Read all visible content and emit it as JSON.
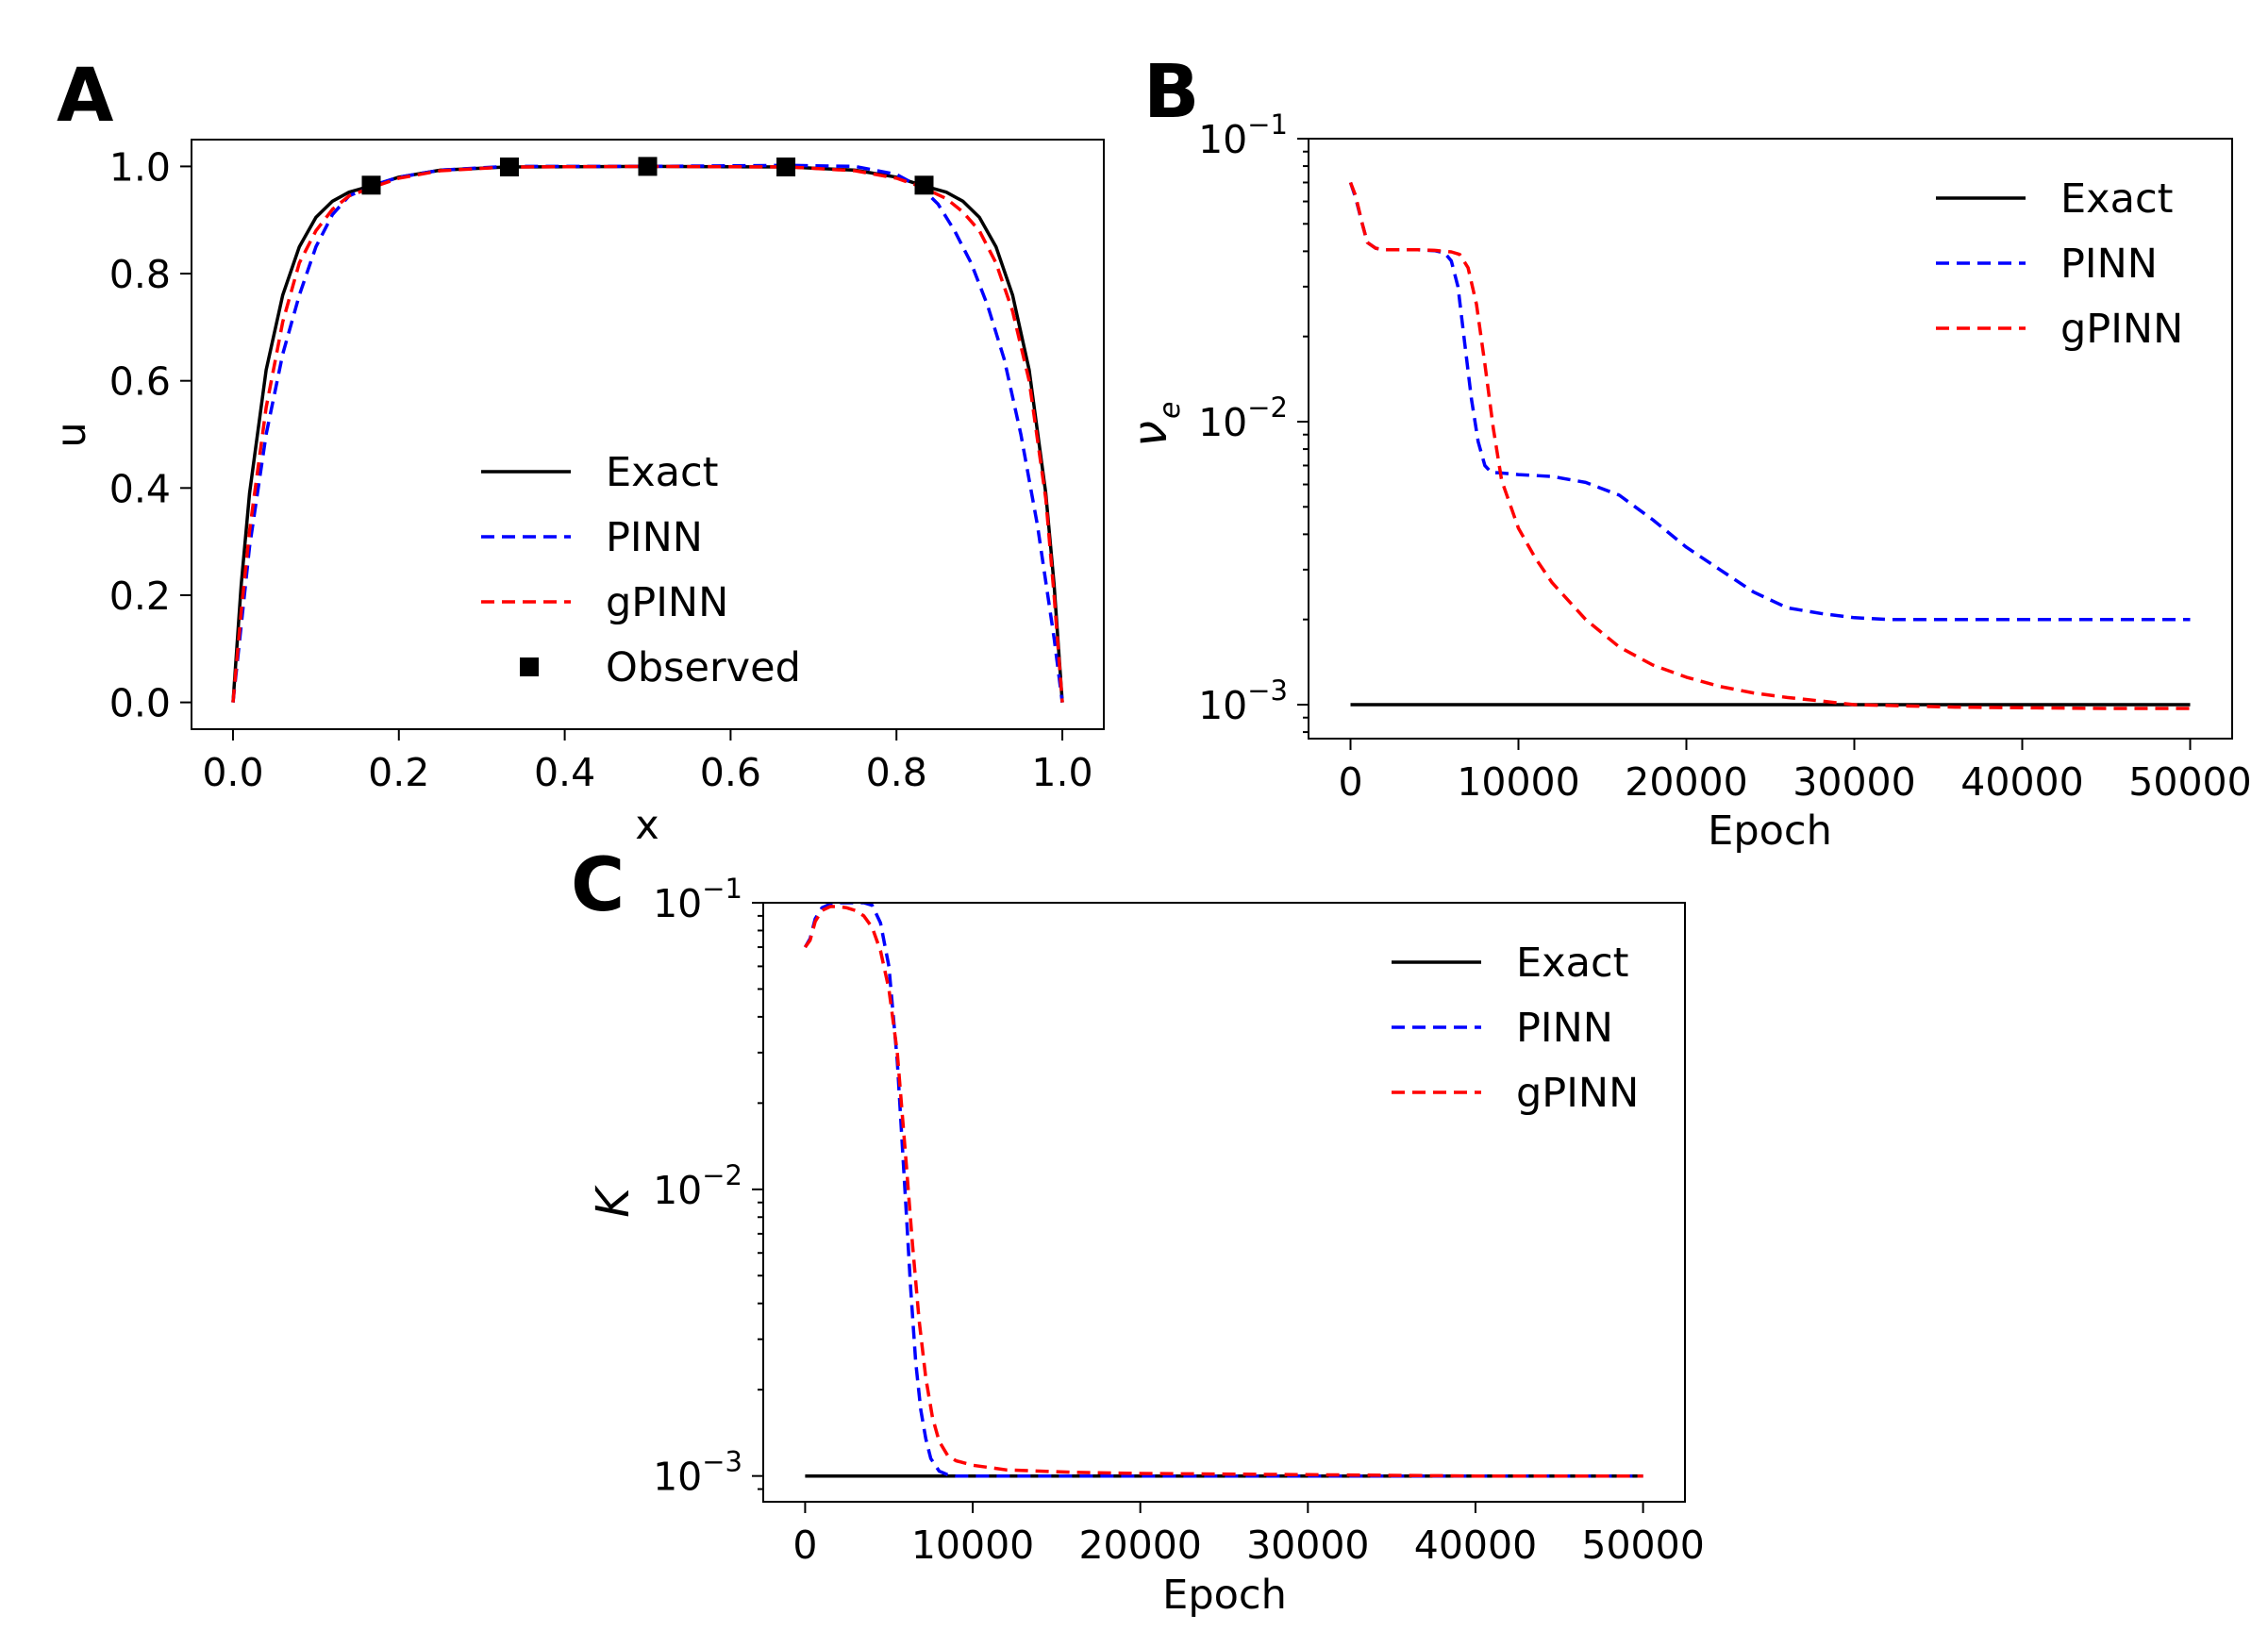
{
  "colors": {
    "exact": "#000000",
    "pinn": "#0000ff",
    "gpinn": "#ff0000"
  },
  "chart_data": [
    {
      "panel": "A",
      "type": "line",
      "xlabel": "x",
      "ylabel": "u",
      "xlim": [
        -0.05,
        1.05
      ],
      "ylim": [
        -0.05,
        1.05
      ],
      "xticks": [
        0.0,
        0.2,
        0.4,
        0.6,
        0.8,
        1.0
      ],
      "xtick_labels": [
        "0.0",
        "0.2",
        "0.4",
        "0.6",
        "0.8",
        "1.0"
      ],
      "yticks": [
        0.0,
        0.2,
        0.4,
        0.6,
        0.8,
        1.0
      ],
      "ytick_labels": [
        "0.0",
        "0.2",
        "0.4",
        "0.6",
        "0.8",
        "1.0"
      ],
      "legend_position": "center-bottom",
      "series": [
        {
          "name": "Exact",
          "style": "solid",
          "color": "#000000",
          "x": [
            0,
            0.01,
            0.02,
            0.04,
            0.06,
            0.08,
            0.1,
            0.12,
            0.14,
            0.17,
            0.2,
            0.25,
            0.33,
            0.5,
            0.67,
            0.75,
            0.8,
            0.83,
            0.86,
            0.88,
            0.9,
            0.92,
            0.94,
            0.96,
            0.98,
            0.99,
            1.0
          ],
          "y": [
            0,
            0.22,
            0.39,
            0.62,
            0.76,
            0.85,
            0.905,
            0.935,
            0.952,
            0.965,
            0.98,
            0.993,
            0.999,
            1.0,
            0.999,
            0.993,
            0.98,
            0.965,
            0.952,
            0.935,
            0.905,
            0.85,
            0.76,
            0.62,
            0.39,
            0.22,
            0
          ]
        },
        {
          "name": "PINN",
          "style": "dashed",
          "color": "#0000ff",
          "x": [
            0,
            0.02,
            0.04,
            0.06,
            0.08,
            0.1,
            0.12,
            0.14,
            0.17,
            0.2,
            0.25,
            0.33,
            0.5,
            0.67,
            0.75,
            0.8,
            0.83,
            0.85,
            0.87,
            0.89,
            0.91,
            0.93,
            0.95,
            0.97,
            0.99,
            1.0
          ],
          "y": [
            0,
            0.29,
            0.5,
            0.65,
            0.76,
            0.85,
            0.91,
            0.945,
            0.965,
            0.98,
            0.993,
            1.0,
            1.0,
            1.002,
            1.0,
            0.985,
            0.96,
            0.93,
            0.88,
            0.82,
            0.74,
            0.64,
            0.5,
            0.33,
            0.12,
            0
          ]
        },
        {
          "name": "gPINN",
          "style": "dashed",
          "color": "#ff0000",
          "x": [
            0,
            0.01,
            0.02,
            0.04,
            0.06,
            0.08,
            0.1,
            0.12,
            0.14,
            0.17,
            0.2,
            0.25,
            0.33,
            0.5,
            0.67,
            0.75,
            0.8,
            0.83,
            0.86,
            0.88,
            0.9,
            0.92,
            0.94,
            0.96,
            0.98,
            0.99,
            1.0
          ],
          "y": [
            0,
            0.17,
            0.32,
            0.55,
            0.71,
            0.82,
            0.88,
            0.92,
            0.945,
            0.962,
            0.978,
            0.992,
            0.999,
            1.0,
            0.999,
            0.992,
            0.978,
            0.962,
            0.94,
            0.915,
            0.88,
            0.82,
            0.73,
            0.6,
            0.38,
            0.2,
            0
          ]
        },
        {
          "name": "Observed",
          "style": "marker",
          "color": "#000000",
          "x": [
            0.1667,
            0.3333,
            0.5,
            0.6667,
            0.8333
          ],
          "y": [
            0.965,
            0.999,
            1.0,
            0.999,
            0.965
          ]
        }
      ]
    },
    {
      "panel": "B",
      "type": "line",
      "xlabel": "Epoch",
      "ylabel": "ν",
      "ylabel_sub": "e",
      "yscale": "log",
      "xlim": [
        -2500,
        52500
      ],
      "ylim_log10": [
        -3.12,
        -1
      ],
      "xticks": [
        0,
        10000,
        20000,
        30000,
        40000,
        50000
      ],
      "xtick_labels": [
        "0",
        "10000",
        "20000",
        "30000",
        "40000",
        "50000"
      ],
      "yticks_log10": [
        -3,
        -2,
        -1
      ],
      "ytick_base": "10",
      "ytick_exponents": [
        "−3",
        "−2",
        "−1"
      ],
      "legend_position": "top-right",
      "series": [
        {
          "name": "Exact",
          "style": "solid",
          "color": "#000000",
          "x": [
            0,
            50000
          ],
          "y": [
            0.001,
            0.001
          ]
        },
        {
          "name": "PINN",
          "style": "dashed",
          "color": "#0000ff",
          "x": [
            0,
            300,
            700,
            1000,
            1500,
            2000,
            3000,
            4000,
            5000,
            5600,
            6000,
            6400,
            6800,
            7200,
            7600,
            8000,
            8400,
            8800,
            10000,
            12000,
            14000,
            16000,
            18000,
            20000,
            22000,
            24000,
            26000,
            28000,
            30000,
            32000,
            35000,
            40000,
            45000,
            50000
          ],
          "y": [
            0.07,
            0.062,
            0.05,
            0.043,
            0.041,
            0.0405,
            0.0405,
            0.0405,
            0.0402,
            0.0395,
            0.037,
            0.03,
            0.019,
            0.012,
            0.0085,
            0.007,
            0.0066,
            0.0066,
            0.0065,
            0.0064,
            0.0061,
            0.0055,
            0.0045,
            0.0036,
            0.003,
            0.0025,
            0.0022,
            0.0021,
            0.00203,
            0.002,
            0.002,
            0.002,
            0.002,
            0.002
          ]
        },
        {
          "name": "gPINN",
          "style": "dashed",
          "color": "#ff0000",
          "x": [
            0,
            300,
            700,
            1000,
            1500,
            2000,
            3000,
            4000,
            5000,
            6000,
            6500,
            7000,
            7500,
            8000,
            8500,
            9000,
            10000,
            11000,
            12000,
            14000,
            16000,
            18000,
            20000,
            22000,
            24000,
            26000,
            28000,
            30000,
            33000,
            36000,
            40000,
            45000,
            50000
          ],
          "y": [
            0.07,
            0.063,
            0.05,
            0.043,
            0.041,
            0.0405,
            0.0405,
            0.0405,
            0.0403,
            0.0398,
            0.039,
            0.035,
            0.026,
            0.016,
            0.0095,
            0.0062,
            0.0042,
            0.0033,
            0.0027,
            0.002,
            0.0016,
            0.00138,
            0.00125,
            0.00116,
            0.0011,
            0.00106,
            0.00103,
            0.001,
            0.00099,
            0.00098,
            0.000975,
            0.00097,
            0.00097
          ]
        }
      ]
    },
    {
      "panel": "C",
      "type": "line",
      "xlabel": "Epoch",
      "ylabel": "K",
      "yscale": "log",
      "xlim": [
        -2500,
        52500
      ],
      "ylim_log10": [
        -3.09,
        -1
      ],
      "xticks": [
        0,
        10000,
        20000,
        30000,
        40000,
        50000
      ],
      "xtick_labels": [
        "0",
        "10000",
        "20000",
        "30000",
        "40000",
        "50000"
      ],
      "yticks_log10": [
        -3,
        -2,
        -1
      ],
      "ytick_base": "10",
      "ytick_exponents": [
        "−3",
        "−2",
        "−1"
      ],
      "legend_position": "top-right",
      "series": [
        {
          "name": "Exact",
          "style": "solid",
          "color": "#000000",
          "x": [
            0,
            50000
          ],
          "y": [
            0.001,
            0.001
          ]
        },
        {
          "name": "PINN",
          "style": "dashed",
          "color": "#0000ff",
          "x": [
            0,
            300,
            600,
            1000,
            1500,
            2000,
            2500,
            3000,
            3500,
            4000,
            4500,
            5000,
            5500,
            6000,
            6300,
            6600,
            6900,
            7200,
            7500,
            8000,
            8500,
            9000,
            10000,
            12000,
            15000,
            20000,
            30000,
            40000,
            50000
          ],
          "y": [
            0.07,
            0.075,
            0.088,
            0.096,
            0.099,
            0.1,
            0.1,
            0.1,
            0.1,
            0.098,
            0.085,
            0.06,
            0.028,
            0.009,
            0.0045,
            0.0025,
            0.0017,
            0.00135,
            0.00115,
            0.00104,
            0.00101,
            0.001,
            0.001,
            0.001,
            0.001,
            0.001,
            0.001,
            0.001,
            0.001
          ]
        },
        {
          "name": "gPINN",
          "style": "dashed",
          "color": "#ff0000",
          "x": [
            0,
            300,
            600,
            1000,
            1500,
            2000,
            2500,
            3000,
            3500,
            4000,
            4500,
            5000,
            5500,
            6000,
            6400,
            6800,
            7200,
            7600,
            8000,
            8500,
            9000,
            10000,
            11000,
            12000,
            14000,
            16000,
            20000,
            30000,
            40000,
            50000
          ],
          "y": [
            0.07,
            0.074,
            0.086,
            0.094,
            0.097,
            0.097,
            0.096,
            0.094,
            0.09,
            0.082,
            0.068,
            0.05,
            0.03,
            0.013,
            0.0065,
            0.0035,
            0.0022,
            0.0016,
            0.00132,
            0.00118,
            0.00113,
            0.00109,
            0.00107,
            0.00105,
            0.00104,
            0.00103,
            0.00102,
            0.00101,
            0.001,
            0.001
          ]
        }
      ]
    }
  ]
}
